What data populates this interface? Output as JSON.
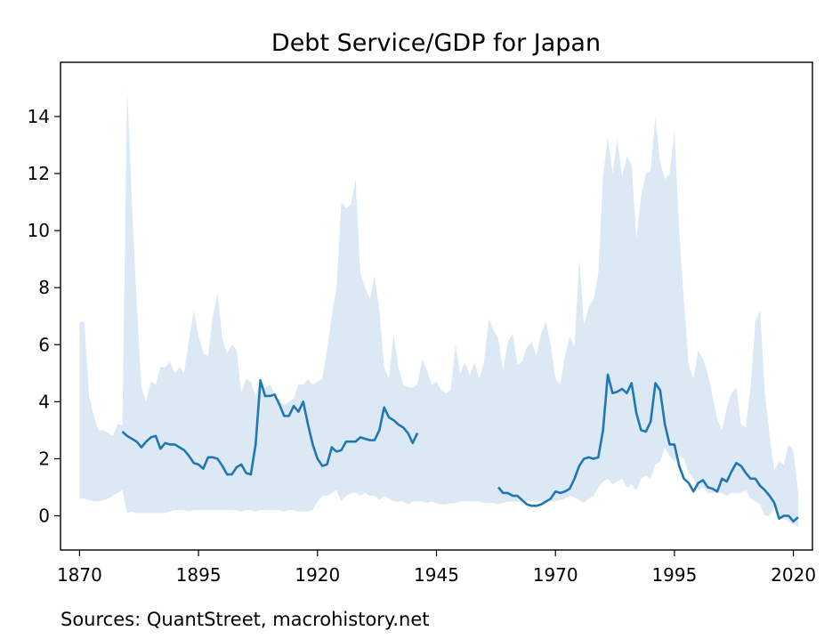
{
  "chart_data": {
    "type": "line",
    "title": "Debt Service/GDP for Japan",
    "xlabel": "",
    "ylabel": "",
    "xlim": [
      1866,
      2024
    ],
    "ylim": [
      -1.2,
      15.9
    ],
    "x_ticks": [
      1870,
      1895,
      1920,
      1945,
      1970,
      1995,
      2020
    ],
    "y_ticks": [
      0,
      2,
      4,
      6,
      8,
      10,
      12,
      14
    ],
    "grid": false,
    "legend": "none",
    "colors": {
      "line": "#1f77b4",
      "band": "#dce8f3"
    },
    "series": [
      {
        "values_xy_segments": [
          [
            [
              1879,
              2.95
            ],
            [
              1880,
              2.8
            ],
            [
              1881,
              2.7
            ],
            [
              1882,
              2.6
            ],
            [
              1883,
              2.4
            ],
            [
              1884,
              2.6
            ],
            [
              1885,
              2.75
            ],
            [
              1886,
              2.8
            ],
            [
              1887,
              2.35
            ],
            [
              1888,
              2.55
            ],
            [
              1889,
              2.5
            ],
            [
              1890,
              2.5
            ],
            [
              1891,
              2.4
            ],
            [
              1892,
              2.3
            ],
            [
              1893,
              2.1
            ],
            [
              1894,
              1.85
            ],
            [
              1895,
              1.8
            ],
            [
              1896,
              1.65
            ],
            [
              1897,
              2.05
            ],
            [
              1898,
              2.05
            ],
            [
              1899,
              2.0
            ],
            [
              1900,
              1.75
            ],
            [
              1901,
              1.45
            ],
            [
              1902,
              1.45
            ],
            [
              1903,
              1.7
            ],
            [
              1904,
              1.8
            ],
            [
              1905,
              1.5
            ],
            [
              1906,
              1.45
            ],
            [
              1907,
              2.5
            ],
            [
              1908,
              4.75
            ],
            [
              1909,
              4.2
            ],
            [
              1910,
              4.2
            ],
            [
              1911,
              4.25
            ],
            [
              1912,
              3.9
            ],
            [
              1913,
              3.5
            ],
            [
              1914,
              3.5
            ],
            [
              1915,
              3.85
            ],
            [
              1916,
              3.65
            ],
            [
              1917,
              4.0
            ],
            [
              1918,
              3.2
            ],
            [
              1919,
              2.5
            ],
            [
              1920,
              2.0
            ],
            [
              1921,
              1.75
            ],
            [
              1922,
              1.8
            ],
            [
              1923,
              2.4
            ],
            [
              1924,
              2.25
            ],
            [
              1925,
              2.3
            ],
            [
              1926,
              2.6
            ],
            [
              1927,
              2.6
            ],
            [
              1928,
              2.6
            ],
            [
              1929,
              2.75
            ],
            [
              1930,
              2.7
            ],
            [
              1931,
              2.65
            ],
            [
              1932,
              2.65
            ],
            [
              1933,
              3.0
            ],
            [
              1934,
              3.8
            ],
            [
              1935,
              3.45
            ],
            [
              1936,
              3.35
            ],
            [
              1937,
              3.2
            ],
            [
              1938,
              3.1
            ],
            [
              1939,
              2.9
            ],
            [
              1940,
              2.55
            ],
            [
              1941,
              2.9
            ]
          ],
          [
            [
              1958,
              1.0
            ],
            [
              1959,
              0.8
            ],
            [
              1960,
              0.8
            ],
            [
              1961,
              0.7
            ],
            [
              1962,
              0.7
            ],
            [
              1963,
              0.55
            ],
            [
              1964,
              0.4
            ],
            [
              1965,
              0.35
            ],
            [
              1966,
              0.35
            ],
            [
              1967,
              0.4
            ],
            [
              1968,
              0.5
            ],
            [
              1969,
              0.6
            ],
            [
              1970,
              0.85
            ],
            [
              1971,
              0.8
            ],
            [
              1972,
              0.85
            ],
            [
              1973,
              0.95
            ],
            [
              1974,
              1.3
            ],
            [
              1975,
              1.75
            ],
            [
              1976,
              2.0
            ],
            [
              1977,
              2.05
            ],
            [
              1978,
              2.0
            ],
            [
              1979,
              2.05
            ],
            [
              1980,
              3.0
            ],
            [
              1981,
              4.95
            ],
            [
              1982,
              4.3
            ],
            [
              1983,
              4.35
            ],
            [
              1984,
              4.45
            ],
            [
              1985,
              4.3
            ],
            [
              1986,
              4.65
            ],
            [
              1987,
              3.6
            ],
            [
              1988,
              3.0
            ],
            [
              1989,
              2.95
            ],
            [
              1990,
              3.3
            ],
            [
              1991,
              4.65
            ],
            [
              1992,
              4.4
            ],
            [
              1993,
              3.2
            ],
            [
              1994,
              2.5
            ],
            [
              1995,
              2.5
            ],
            [
              1996,
              1.75
            ],
            [
              1997,
              1.3
            ],
            [
              1998,
              1.15
            ],
            [
              1999,
              0.85
            ],
            [
              2000,
              1.15
            ],
            [
              2001,
              1.25
            ],
            [
              2002,
              1.0
            ],
            [
              2003,
              0.95
            ],
            [
              2004,
              0.85
            ],
            [
              2005,
              1.3
            ],
            [
              2006,
              1.2
            ],
            [
              2007,
              1.55
            ],
            [
              2008,
              1.85
            ],
            [
              2009,
              1.75
            ],
            [
              2010,
              1.5
            ],
            [
              2011,
              1.3
            ],
            [
              2012,
              1.3
            ],
            [
              2013,
              1.05
            ],
            [
              2014,
              0.9
            ],
            [
              2015,
              0.7
            ],
            [
              2016,
              0.45
            ],
            [
              2017,
              -0.1
            ],
            [
              2018,
              0.0
            ],
            [
              2019,
              0.0
            ],
            [
              2020,
              -0.2
            ],
            [
              2021,
              -0.05
            ]
          ]
        ]
      }
    ],
    "band": {
      "x": [
        1870,
        1871,
        1872,
        1873,
        1874,
        1875,
        1876,
        1877,
        1878,
        1879,
        1880,
        1881,
        1882,
        1883,
        1884,
        1885,
        1886,
        1887,
        1888,
        1889,
        1890,
        1891,
        1892,
        1893,
        1894,
        1895,
        1896,
        1897,
        1898,
        1899,
        1900,
        1901,
        1902,
        1903,
        1904,
        1905,
        1906,
        1907,
        1908,
        1909,
        1910,
        1911,
        1912,
        1913,
        1914,
        1915,
        1916,
        1917,
        1918,
        1919,
        1920,
        1921,
        1922,
        1923,
        1924,
        1925,
        1926,
        1927,
        1928,
        1929,
        1930,
        1931,
        1932,
        1933,
        1934,
        1935,
        1936,
        1937,
        1938,
        1939,
        1940,
        1941,
        1942,
        1943,
        1944,
        1945,
        1946,
        1947,
        1948,
        1949,
        1950,
        1951,
        1952,
        1953,
        1954,
        1955,
        1956,
        1957,
        1958,
        1959,
        1960,
        1961,
        1962,
        1963,
        1964,
        1965,
        1966,
        1967,
        1968,
        1969,
        1970,
        1971,
        1972,
        1973,
        1974,
        1975,
        1976,
        1977,
        1978,
        1979,
        1980,
        1981,
        1982,
        1983,
        1984,
        1985,
        1986,
        1987,
        1988,
        1989,
        1990,
        1991,
        1992,
        1993,
        1994,
        1995,
        1996,
        1997,
        1998,
        1999,
        2000,
        2001,
        2002,
        2003,
        2004,
        2005,
        2006,
        2007,
        2008,
        2009,
        2010,
        2011,
        2012,
        2013,
        2014,
        2015,
        2016,
        2017,
        2018,
        2019,
        2020,
        2021
      ],
      "upper": [
        6.8,
        6.8,
        4.2,
        3.5,
        3.0,
        3.0,
        2.9,
        2.8,
        3.2,
        3.2,
        15.0,
        11.0,
        7.5,
        4.5,
        4.0,
        4.7,
        4.6,
        5.2,
        5.2,
        5.4,
        5.0,
        5.2,
        5.0,
        6.2,
        7.2,
        6.3,
        5.7,
        5.6,
        7.0,
        7.8,
        6.2,
        5.7,
        6.0,
        5.8,
        4.3,
        4.8,
        4.7,
        4.2,
        4.7,
        4.5,
        4.6,
        4.3,
        4.0,
        3.9,
        4.0,
        4.1,
        4.6,
        4.6,
        4.8,
        4.6,
        4.7,
        4.8,
        5.8,
        7.0,
        8.0,
        11.0,
        10.8,
        10.9,
        11.8,
        8.5,
        8.0,
        7.6,
        8.4,
        7.2,
        5.2,
        4.8,
        6.4,
        5.2,
        4.6,
        4.5,
        4.5,
        4.6,
        5.5,
        5.1,
        4.6,
        4.7,
        4.4,
        4.3,
        4.4,
        6.0,
        5.0,
        5.4,
        4.9,
        5.4,
        4.8,
        5.4,
        6.9,
        6.5,
        6.2,
        5.1,
        6.1,
        6.4,
        5.3,
        5.4,
        5.9,
        6.1,
        5.6,
        6.4,
        6.8,
        6.0,
        4.8,
        4.6,
        5.6,
        6.3,
        5.9,
        9.0,
        6.7,
        7.3,
        7.6,
        8.5,
        11.9,
        13.3,
        12.0,
        13.2,
        11.9,
        12.6,
        12.3,
        9.7,
        11.2,
        12.0,
        12.1,
        14.0,
        12.4,
        11.8,
        12.0,
        13.5,
        10.0,
        7.5,
        5.3,
        4.8,
        5.8,
        5.5,
        5.0,
        4.2,
        3.4,
        3.0,
        3.8,
        4.3,
        4.5,
        3.2,
        3.1,
        4.5,
        6.8,
        7.2,
        4.3,
        2.8,
        1.6,
        1.9,
        1.8,
        2.5,
        2.3,
        0.8
      ],
      "lower": [
        0.6,
        0.6,
        0.55,
        0.5,
        0.5,
        0.55,
        0.6,
        0.7,
        0.8,
        0.9,
        0.1,
        0.15,
        0.1,
        0.1,
        0.1,
        0.1,
        0.1,
        0.1,
        0.1,
        0.15,
        0.2,
        0.2,
        0.2,
        0.15,
        0.2,
        0.2,
        0.2,
        0.2,
        0.2,
        0.2,
        0.2,
        0.2,
        0.2,
        0.2,
        0.15,
        0.2,
        0.2,
        0.15,
        0.2,
        0.2,
        0.2,
        0.2,
        0.2,
        0.15,
        0.2,
        0.2,
        0.15,
        0.15,
        0.15,
        0.2,
        0.5,
        0.7,
        0.7,
        0.8,
        0.9,
        0.5,
        0.7,
        0.8,
        0.8,
        0.7,
        0.8,
        0.7,
        0.7,
        0.55,
        0.7,
        0.6,
        0.5,
        0.5,
        0.5,
        0.4,
        0.5,
        0.5,
        0.5,
        0.45,
        0.5,
        0.45,
        0.4,
        0.4,
        0.45,
        0.45,
        0.5,
        0.5,
        0.5,
        0.5,
        0.5,
        0.45,
        0.45,
        0.45,
        0.4,
        0.45,
        0.5,
        0.5,
        0.5,
        0.5,
        0.5,
        0.5,
        0.5,
        0.5,
        0.5,
        0.5,
        0.5,
        0.55,
        0.6,
        0.7,
        0.65,
        0.55,
        0.45,
        0.6,
        0.7,
        1.0,
        1.2,
        1.3,
        1.1,
        1.2,
        1.3,
        1.0,
        1.1,
        0.9,
        1.3,
        1.4,
        1.3,
        1.8,
        1.9,
        2.4,
        2.1,
        1.9,
        2.1,
        2.0,
        1.5,
        1.3,
        0.9,
        1.0,
        0.8,
        0.8,
        0.8,
        0.8,
        0.7,
        0.8,
        0.8,
        0.8,
        0.9,
        0.6,
        0.5,
        0.4,
        0.0,
        0.0,
        0.3,
        -0.1,
        -0.1,
        -0.2,
        -0.3,
        -0.4
      ]
    }
  },
  "footer": {
    "sources": "Sources: QuantStreet, macrohistory.net"
  }
}
